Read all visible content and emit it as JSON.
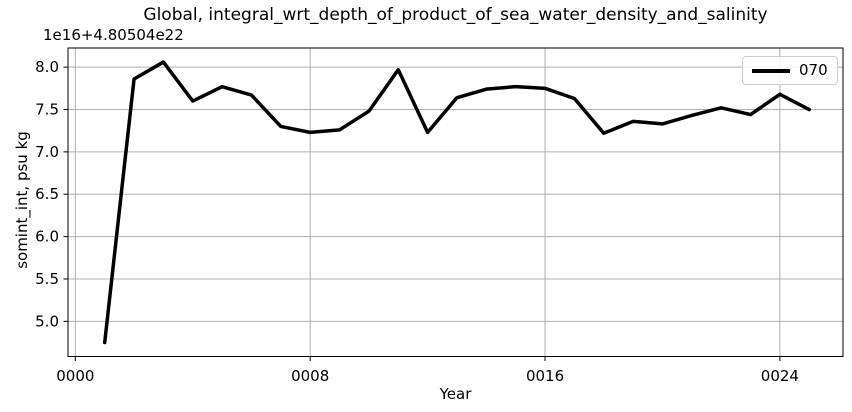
{
  "chart_data": {
    "type": "line",
    "title": "Global, integral_wrt_depth_of_product_of_sea_water_density_and_salinity",
    "xlabel": "Year",
    "ylabel": "somint_int, psu kg",
    "offset_text": "1e16+4.80504e22",
    "x": [
      1,
      2,
      3,
      4,
      5,
      6,
      7,
      8,
      9,
      10,
      11,
      12,
      13,
      14,
      15,
      16,
      17,
      18,
      19,
      20,
      21,
      22,
      23,
      24,
      25
    ],
    "series": [
      {
        "name": "070",
        "color": "#000000",
        "values": [
          4.75,
          7.86,
          8.06,
          7.6,
          7.77,
          7.67,
          7.3,
          7.23,
          7.26,
          7.48,
          7.97,
          7.23,
          7.64,
          7.74,
          7.77,
          7.75,
          7.63,
          7.22,
          7.36,
          7.33,
          7.43,
          7.52,
          7.44,
          7.68,
          7.5
        ]
      }
    ],
    "xticks": {
      "values": [
        0,
        8,
        16,
        24
      ],
      "labels": [
        "0000",
        "0008",
        "0016",
        "0024"
      ]
    },
    "yticks": {
      "values": [
        5.0,
        5.5,
        6.0,
        6.5,
        7.0,
        7.5,
        8.0
      ],
      "labels": [
        "5.0",
        "5.5",
        "6.0",
        "6.5",
        "7.0",
        "7.5",
        "8.0"
      ]
    },
    "xlim": [
      -0.25,
      26.15
    ],
    "ylim": [
      4.585,
      8.226
    ],
    "grid": true,
    "legend": {
      "position": "upper right"
    },
    "colors": {
      "line": "#000000",
      "grid": "#b0b0b0",
      "spine": "#000000",
      "text": "#000000",
      "legend_border": "#cccccc"
    }
  }
}
